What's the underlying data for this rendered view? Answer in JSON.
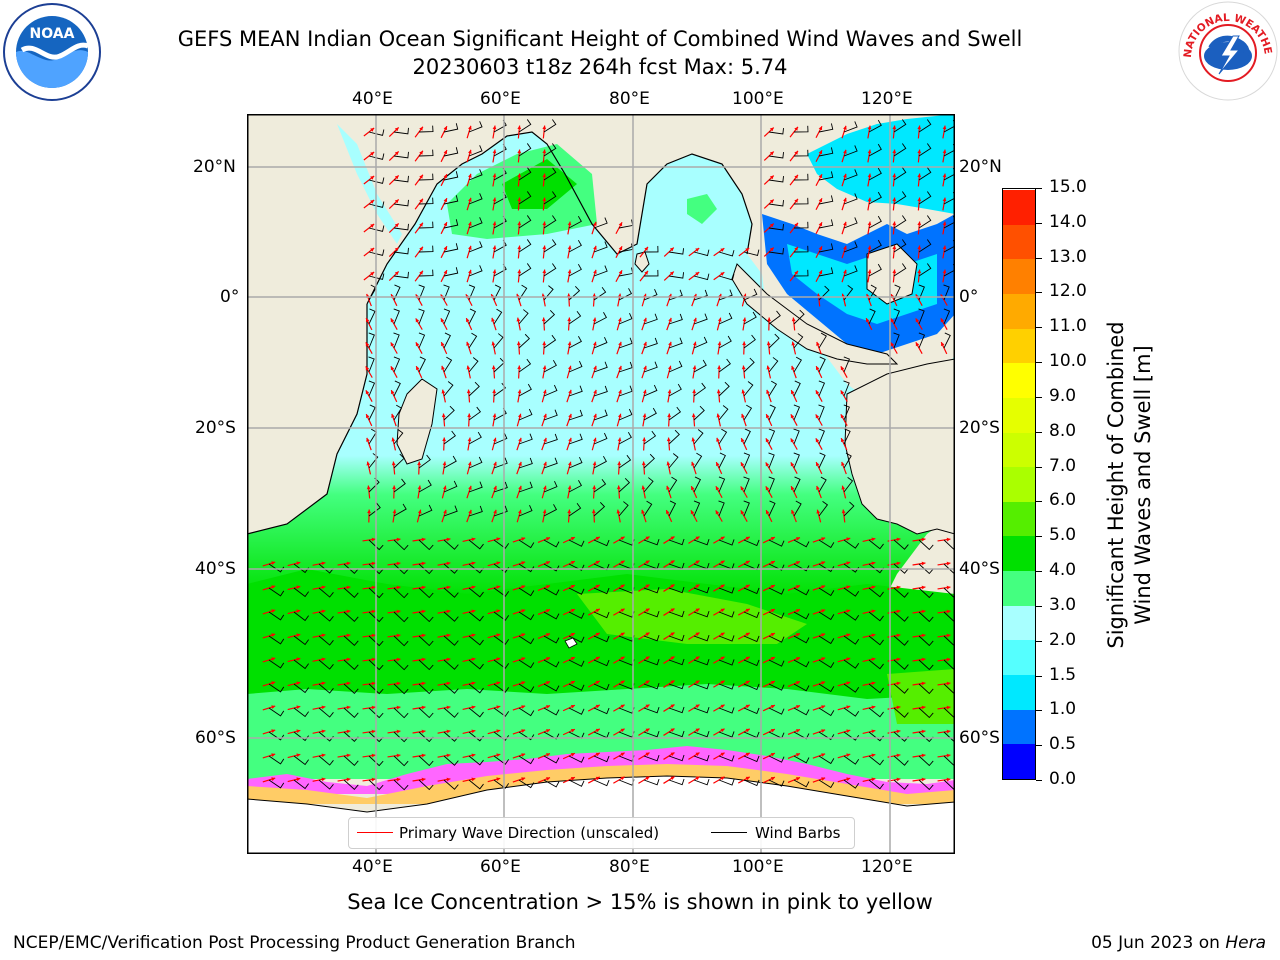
{
  "header": {
    "title": "GEFS MEAN Indian Ocean Significant Height of Combined Wind Waves and Swell",
    "subtitle": "20230603 t18z 264h fcst   Max: 5.74"
  },
  "logos": {
    "noaa_text": "NOAA",
    "nws_text": "NATIONAL WEATHER SERVICE"
  },
  "map": {
    "lon_ticks": [
      "40°E",
      "60°E",
      "80°E",
      "100°E",
      "120°E"
    ],
    "lat_ticks": [
      "20°N",
      "0°",
      "20°S",
      "40°S",
      "60°S"
    ],
    "land_color": "#efecdc",
    "ocean_color_low": "#a8ffff",
    "ocean_color_mid": "#44ff80",
    "ocean_color_high": "#00e000"
  },
  "colorbar": {
    "label_line1": "Significant Height of Combined",
    "label_line2": "Wind Waves and Swell [m]",
    "ticks": [
      "0.0",
      "0.5",
      "1.0",
      "1.5",
      "2.0",
      "3.0",
      "4.0",
      "5.0",
      "6.0",
      "7.0",
      "8.0",
      "9.0",
      "10.0",
      "11.0",
      "12.0",
      "13.0",
      "14.0",
      "15.0"
    ],
    "colors": [
      "#0000ff",
      "#0073ff",
      "#00e8ff",
      "#55ffff",
      "#a8ffff",
      "#44ff80",
      "#00e000",
      "#55ee00",
      "#aaff00",
      "#ccff00",
      "#e5ff00",
      "#ffff00",
      "#ffd000",
      "#ffaa00",
      "#ff8000",
      "#ff5000",
      "#ff2000"
    ]
  },
  "legend": {
    "primary": "Primary Wave Direction (unscaled)",
    "barbs": "Wind Barbs",
    "primary_color": "#ff0000",
    "barbs_color": "#000000"
  },
  "caption": "Sea Ice Concentration > 15% is shown in pink to yellow",
  "footer": {
    "left": "NCEP/EMC/Verification Post Processing Product Generation Branch",
    "right_date": "05 Jun 2023 on ",
    "right_host": "Hera"
  }
}
